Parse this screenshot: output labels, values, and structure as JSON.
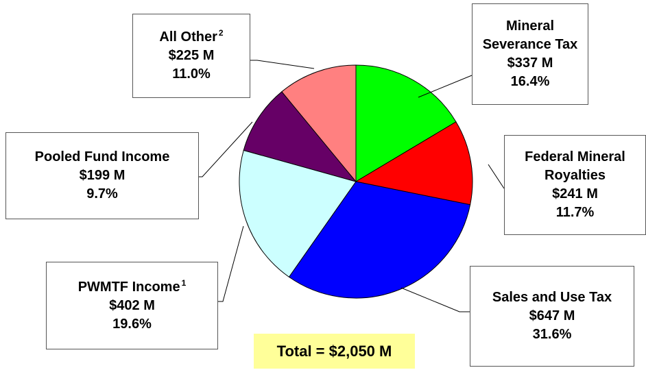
{
  "chart_data": {
    "type": "pie",
    "categories": [
      "Mineral Severance Tax",
      "Federal Mineral Royalties",
      "Sales and Use Tax",
      "PWMTF Income",
      "Pooled Fund Income",
      "All Other"
    ],
    "notes": [
      null,
      null,
      null,
      "1",
      null,
      "2"
    ],
    "values": [
      337,
      241,
      647,
      402,
      199,
      225
    ],
    "value_labels": [
      "$337 M",
      "$241 M",
      "$647 M",
      "$402 M",
      "$199 M",
      "$225 M"
    ],
    "percents": [
      16.4,
      11.7,
      31.6,
      19.6,
      9.7,
      11.0
    ],
    "percent_labels": [
      "16.4%",
      "11.7%",
      "31.6%",
      "19.6%",
      "9.7%",
      "11.0%"
    ],
    "colors": [
      "#00ff00",
      "#ff0000",
      "#0000ff",
      "#ccffff",
      "#660066",
      "#ff8080"
    ],
    "annotation": "Total = $2,050 M"
  }
}
